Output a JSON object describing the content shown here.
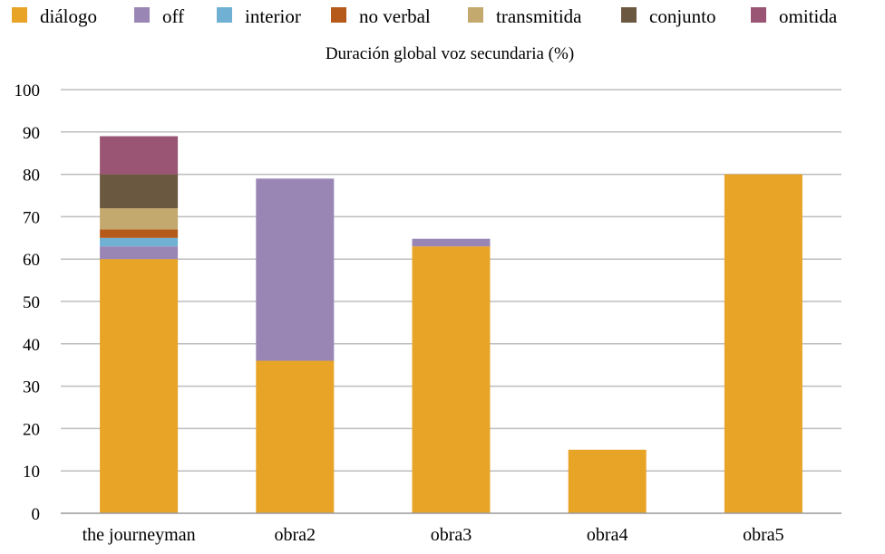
{
  "chart_data": {
    "type": "bar",
    "stacked": true,
    "title": "Duración global voz secundaria (%)",
    "xlabel": "",
    "ylabel": "",
    "ylim": [
      0,
      100
    ],
    "yticks": [
      0,
      10,
      20,
      30,
      40,
      50,
      60,
      70,
      80,
      90,
      100
    ],
    "grid": true,
    "legend_position": "top",
    "categories": [
      "the journeyman",
      "obra2",
      "obra3",
      "obra4",
      "obra5"
    ],
    "series": [
      {
        "name": "diálogo",
        "color": "#E8A427",
        "values": [
          60,
          36,
          63,
          15,
          80
        ]
      },
      {
        "name": "off",
        "color": "#9A86B5",
        "values": [
          3,
          43,
          1.8,
          0,
          0
        ]
      },
      {
        "name": "interior",
        "color": "#6FB0D3",
        "values": [
          2,
          0,
          0,
          0,
          0
        ]
      },
      {
        "name": "no verbal",
        "color": "#B55A1A",
        "values": [
          2,
          0,
          0,
          0,
          0
        ]
      },
      {
        "name": "transmitida",
        "color": "#C4A96E",
        "values": [
          5,
          0,
          0,
          0,
          0
        ]
      },
      {
        "name": "conjunto",
        "color": "#6A5840",
        "values": [
          8,
          0,
          0,
          0,
          0
        ]
      },
      {
        "name": "omitida",
        "color": "#9A5474",
        "values": [
          9,
          0,
          0,
          0,
          0
        ]
      }
    ]
  }
}
